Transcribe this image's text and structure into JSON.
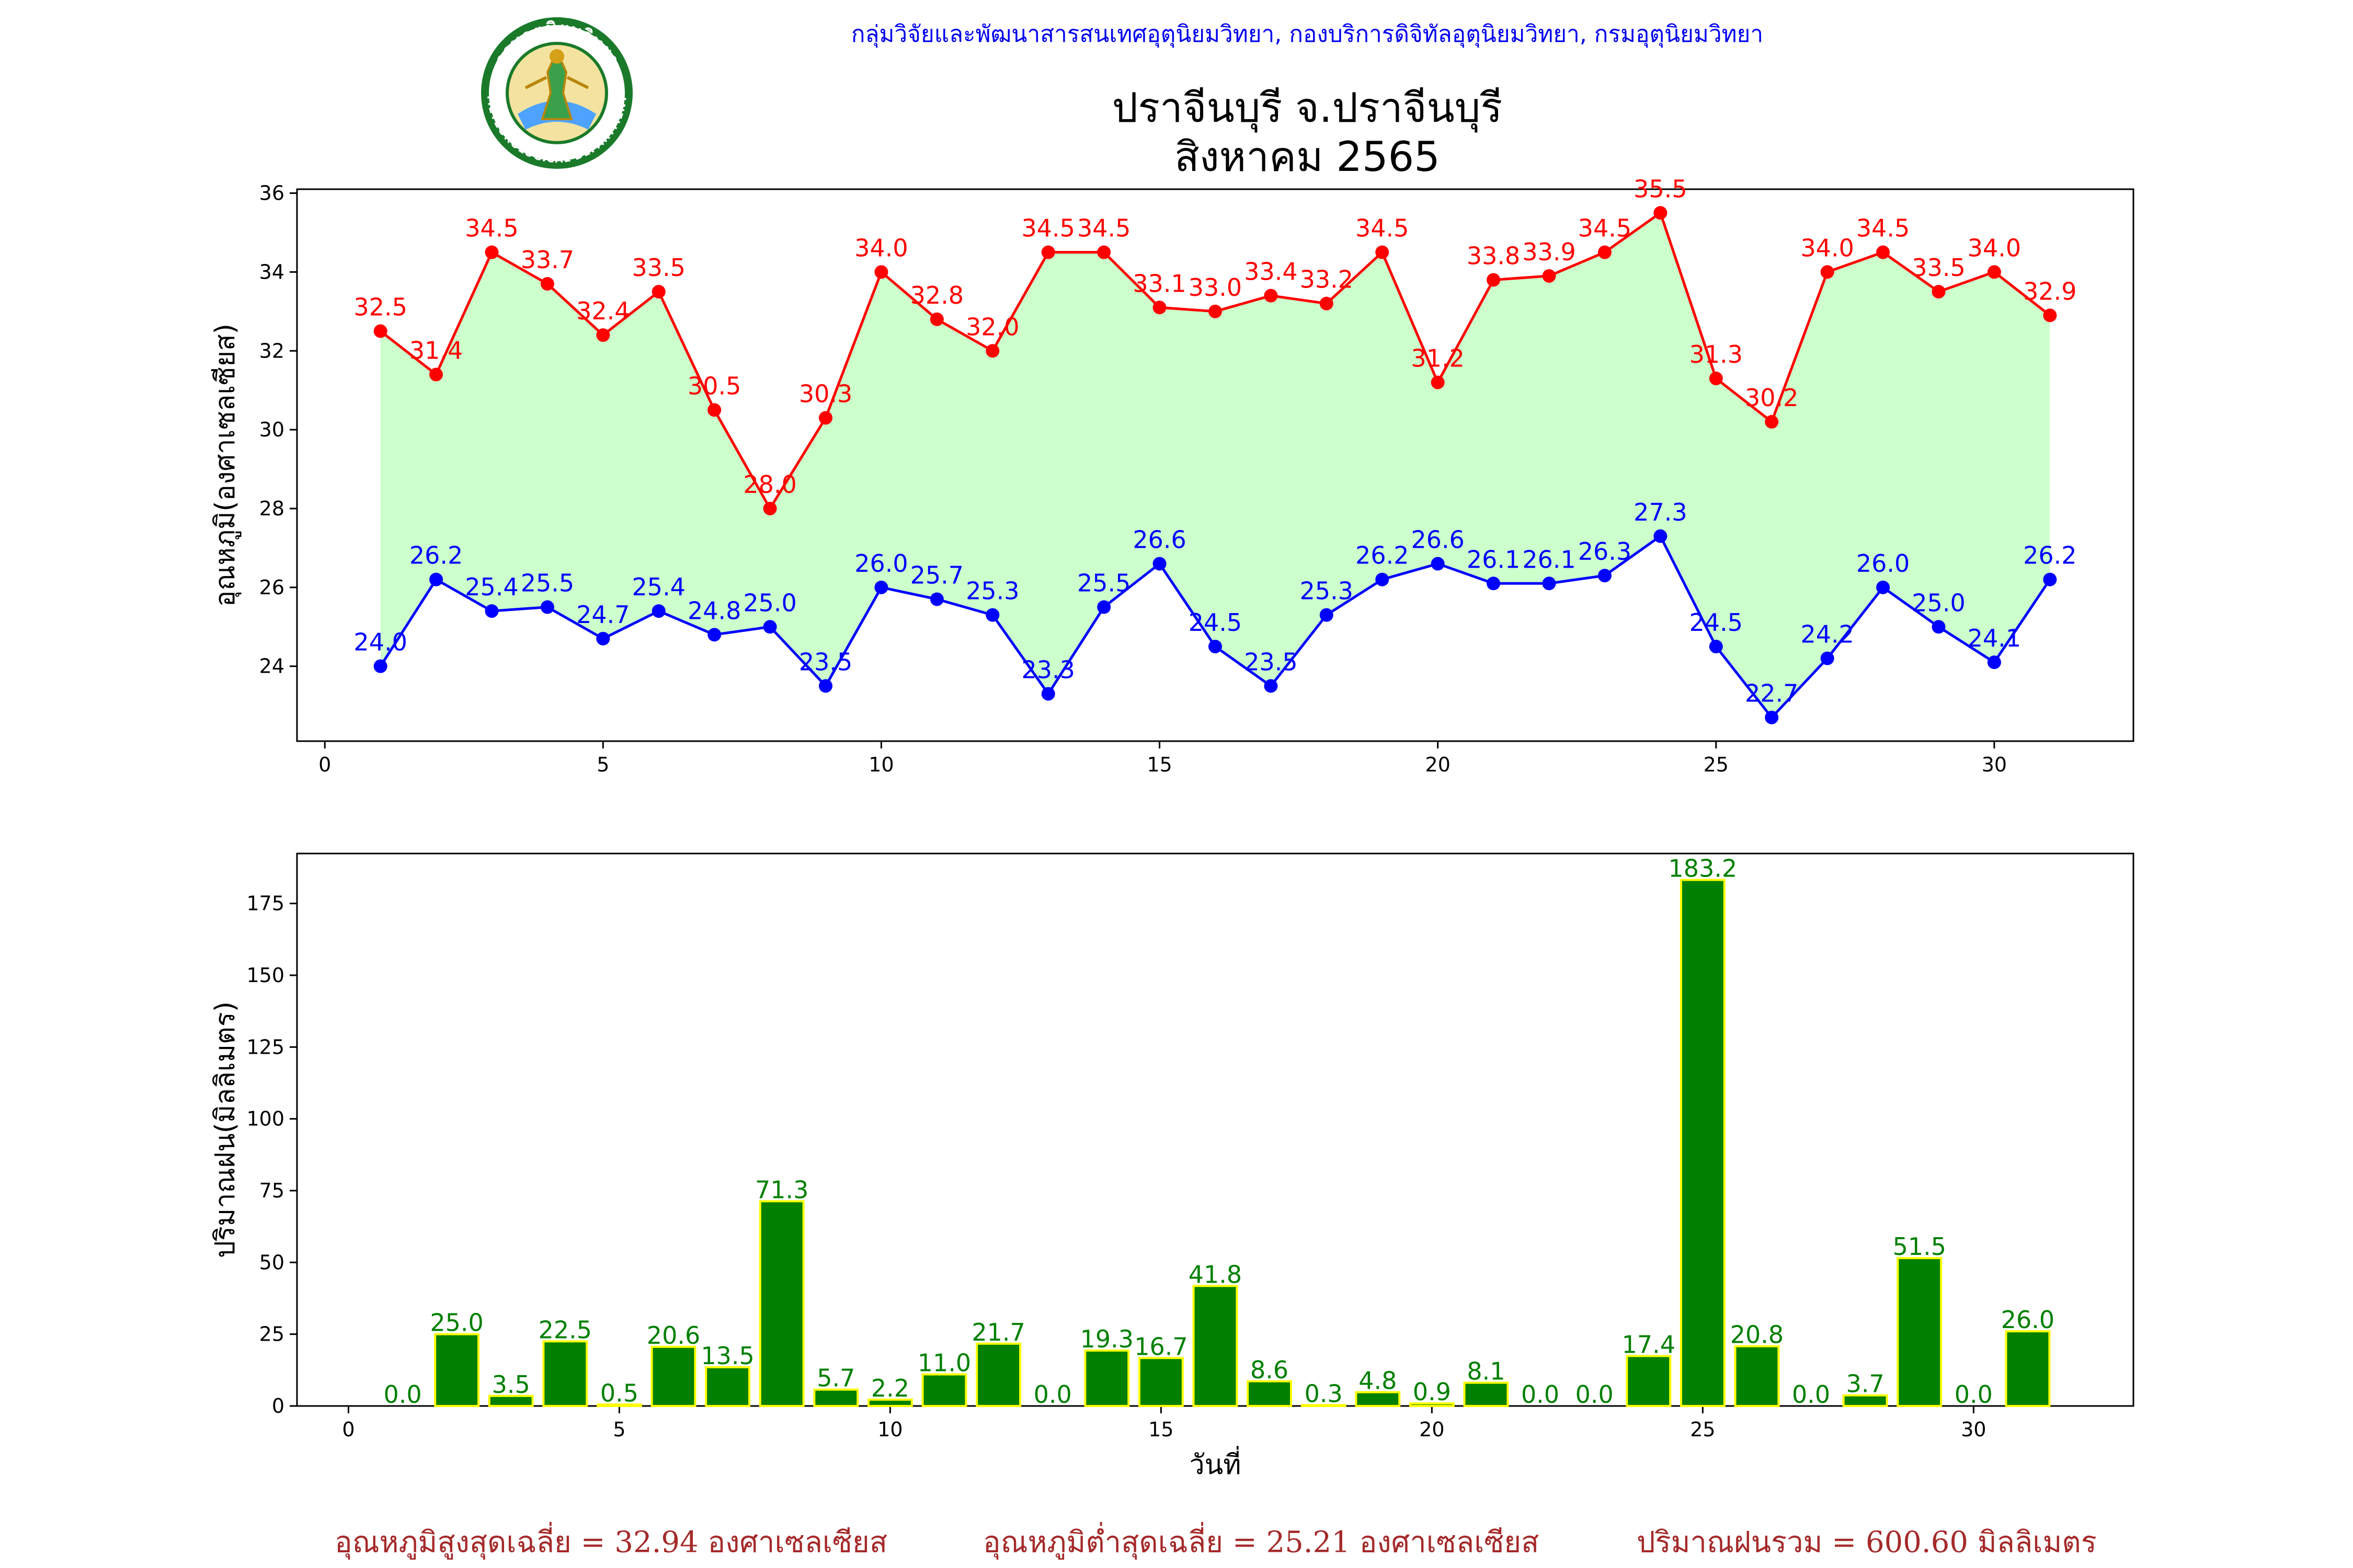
{
  "header": {
    "agency": "กลุ่มวิจัยและพัฒนาสารสนเทศอุตุนิยมวิทยา, กองบริการดิจิทัลอุตุนิยมวิทยา, กรมอุตุนิยมวิทยา",
    "logo_text": "กรมอุตุนิยมวิทยา",
    "logo_text_bottom": "METEOROLOGICAL DEPARTMENT"
  },
  "title": {
    "line1": "ปราจีนบุรี จ.ปราจีนบุรี",
    "line2": "สิงหาคม 2565"
  },
  "footer": {
    "avg_max_label": "อุณหภูมิสูงสุดเฉลี่ย = ",
    "avg_max_value": "32.94",
    "avg_max_unit": " องศาเซลเซียส",
    "avg_min_label": "อุณหภูมิต่ำสุดเฉลี่ย = ",
    "avg_min_value": "25.21",
    "avg_min_unit": " องศาเซลเซียส",
    "total_rain_label": "ปริมาณฝนรวม = ",
    "total_rain_value": "600.60",
    "total_rain_unit": " มิลลิเมตร"
  },
  "colors": {
    "max_line": "#ff0000",
    "min_line": "#0000ff",
    "fill_between": "#ccffcc",
    "bar_fill": "#008000",
    "bar_edge": "#ffff00",
    "bar_label": "#008000",
    "footer_text": "#a52a2a",
    "header_text": "#0000ee"
  },
  "chart_data": [
    {
      "type": "line",
      "ylabel": "อุณหภูมิ(องศาเซลเซียส)",
      "xlabel": "",
      "x": [
        1,
        2,
        3,
        4,
        5,
        6,
        7,
        8,
        9,
        10,
        11,
        12,
        13,
        14,
        15,
        16,
        17,
        18,
        19,
        20,
        21,
        22,
        23,
        24,
        25,
        26,
        27,
        28,
        29,
        30,
        31
      ],
      "xlim": [
        -0.5,
        32.5
      ],
      "ylim": [
        22.1,
        36.1
      ],
      "xticks": [
        0,
        5,
        10,
        15,
        20,
        25,
        30
      ],
      "yticks": [
        24,
        26,
        28,
        30,
        32,
        34,
        36
      ],
      "grid": false,
      "series": [
        {
          "values": [
            32.5,
            31.4,
            34.5,
            33.7,
            32.4,
            33.5,
            30.5,
            28.0,
            30.3,
            34.0,
            32.8,
            32.0,
            34.5,
            34.5,
            33.1,
            33.0,
            33.4,
            33.2,
            34.5,
            31.2,
            33.8,
            33.9,
            34.5,
            35.5,
            31.3,
            30.2,
            34.0,
            34.5,
            33.5,
            34.0,
            32.9
          ]
        },
        {
          "values": [
            24.0,
            26.2,
            25.4,
            25.5,
            24.7,
            25.4,
            24.8,
            25.0,
            23.5,
            26.0,
            25.7,
            25.3,
            23.3,
            25.5,
            26.6,
            24.5,
            23.5,
            25.3,
            26.2,
            26.6,
            26.1,
            26.1,
            26.3,
            27.3,
            24.5,
            22.7,
            24.2,
            26.0,
            25.0,
            24.1,
            26.2
          ]
        }
      ]
    },
    {
      "type": "bar",
      "ylabel": "ปริมาณฝน(มิลลิเมตร)",
      "xlabel": "วันที่",
      "x": [
        1,
        2,
        3,
        4,
        5,
        6,
        7,
        8,
        9,
        10,
        11,
        12,
        13,
        14,
        15,
        16,
        17,
        18,
        19,
        20,
        21,
        22,
        23,
        24,
        25,
        26,
        27,
        28,
        29,
        30,
        31
      ],
      "xlim": [
        -0.95,
        32.95
      ],
      "ylim": [
        0,
        192.4
      ],
      "xticks": [
        0,
        5,
        10,
        15,
        20,
        25,
        30
      ],
      "yticks": [
        0,
        25,
        50,
        75,
        100,
        125,
        150,
        175
      ],
      "grid": false,
      "values": [
        0.0,
        25.0,
        3.5,
        22.5,
        0.5,
        20.6,
        13.5,
        71.3,
        5.7,
        2.2,
        11.0,
        21.7,
        0.0,
        19.3,
        16.7,
        41.8,
        8.6,
        0.3,
        4.8,
        0.9,
        8.1,
        0.0,
        0.0,
        17.4,
        183.2,
        20.8,
        0.0,
        3.7,
        51.5,
        0.0,
        26.0
      ]
    }
  ]
}
